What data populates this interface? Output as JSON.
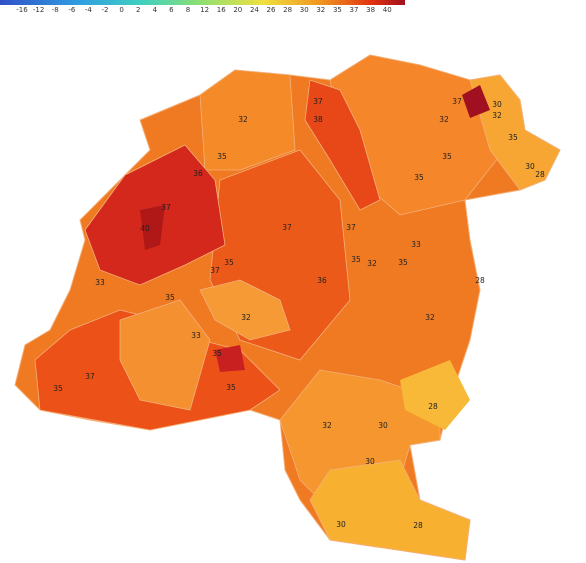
{
  "legend": {
    "ticks": [
      -16,
      -12,
      -8,
      -6,
      -4,
      -2,
      0,
      2,
      4,
      6,
      8,
      12,
      16,
      20,
      24,
      26,
      28,
      30,
      32,
      35,
      37,
      38,
      40
    ]
  },
  "contour_labels": [
    37,
    38,
    37,
    30,
    32,
    32,
    32,
    35,
    35,
    35,
    30,
    28,
    36,
    35,
    37,
    40,
    37,
    37,
    33,
    35,
    35,
    32,
    35,
    37,
    33,
    36,
    28,
    35,
    32,
    32,
    33,
    35,
    37,
    35,
    35,
    28,
    32,
    30,
    30,
    30,
    28
  ]
}
